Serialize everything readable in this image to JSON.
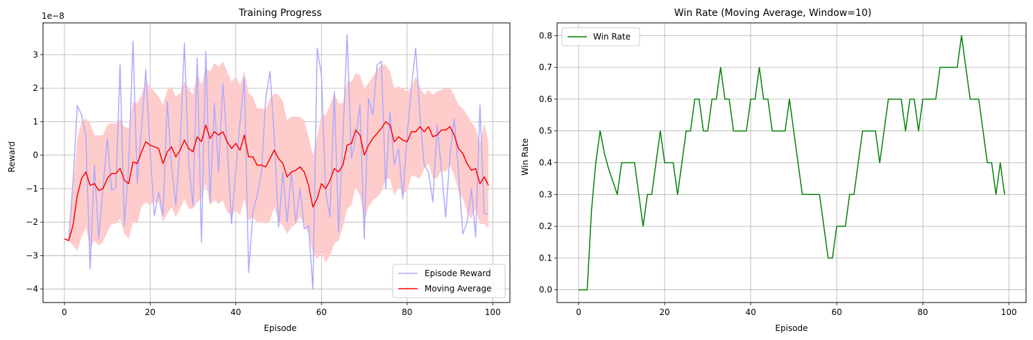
{
  "chart_data": [
    {
      "type": "line",
      "title": "Training Progress",
      "xlabel": "Episode",
      "ylabel": "Reward",
      "offset_label": "1e−8",
      "xlim": [
        -5,
        104
      ],
      "ylim": [
        -4.4,
        3.95
      ],
      "x_ticks": [
        0,
        20,
        40,
        60,
        80,
        100
      ],
      "y_ticks": [
        -4,
        -3,
        -2,
        -1,
        0,
        1,
        2,
        3
      ],
      "grid": true,
      "legend_position": "lower-right",
      "series": [
        {
          "name": "Episode Reward",
          "color": "#aaaaff",
          "x": [
            0,
            1,
            2,
            3,
            4,
            5,
            6,
            7,
            8,
            9,
            10,
            11,
            12,
            13,
            14,
            15,
            16,
            17,
            18,
            19,
            20,
            21,
            22,
            23,
            24,
            25,
            26,
            27,
            28,
            29,
            30,
            31,
            32,
            33,
            34,
            35,
            36,
            37,
            38,
            39,
            40,
            41,
            42,
            43,
            44,
            45,
            46,
            47,
            48,
            49,
            50,
            51,
            52,
            53,
            54,
            55,
            56,
            57,
            58,
            59,
            60,
            61,
            62,
            63,
            64,
            65,
            66,
            67,
            68,
            69,
            70,
            71,
            72,
            73,
            74,
            75,
            76,
            77,
            78,
            79,
            80,
            81,
            82,
            83,
            84,
            85,
            86,
            87,
            88,
            89,
            90,
            91,
            92,
            93,
            94,
            95,
            96,
            97,
            98,
            99
          ],
          "values": [
            -2.5,
            -2.55,
            -0.8,
            1.48,
            1.2,
            0.6,
            -3.4,
            -0.3,
            -2.5,
            -1.0,
            0.5,
            -1.05,
            -0.95,
            2.7,
            -2.1,
            -0.3,
            3.4,
            -0.85,
            0.8,
            2.55,
            0.1,
            -1.8,
            -1.1,
            -1.8,
            1.6,
            -0.3,
            -1.5,
            0.3,
            3.35,
            -0.2,
            -1.5,
            2.9,
            -2.6,
            3.1,
            -1.4,
            1.55,
            -0.5,
            2.15,
            0.3,
            -2.05,
            -0.5,
            1.0,
            2.3,
            -3.5,
            -1.7,
            -1.2,
            -0.5,
            1.7,
            2.5,
            0.5,
            -2.15,
            -0.5,
            -2.0,
            -0.5,
            -2.0,
            -1.0,
            -2.2,
            -2.1,
            -4.0,
            3.2,
            2.4,
            -1.1,
            -1.85,
            1.9,
            -2.3,
            0.5,
            3.6,
            -0.1,
            0.5,
            1.5,
            -2.5,
            1.7,
            1.2,
            2.7,
            2.8,
            -1.0,
            1.3,
            -0.3,
            0.2,
            -1.3,
            0.6,
            2.0,
            3.2,
            1.2,
            -0.3,
            -0.5,
            -1.4,
            0.9,
            -0.4,
            -1.85,
            0.0,
            1.1,
            -0.5,
            -2.35,
            -2.0,
            -1.0,
            -2.45,
            1.5,
            -1.75,
            -1.75
          ]
        },
        {
          "name": "Moving Average",
          "color": "#ff0000",
          "x": [
            0,
            1,
            2,
            3,
            4,
            5,
            6,
            7,
            8,
            9,
            10,
            11,
            12,
            13,
            14,
            15,
            16,
            17,
            18,
            19,
            20,
            21,
            22,
            23,
            24,
            25,
            26,
            27,
            28,
            29,
            30,
            31,
            32,
            33,
            34,
            35,
            36,
            37,
            38,
            39,
            40,
            41,
            42,
            43,
            44,
            45,
            46,
            47,
            48,
            49,
            50,
            51,
            52,
            53,
            54,
            55,
            56,
            57,
            58,
            59,
            60,
            61,
            62,
            63,
            64,
            65,
            66,
            67,
            68,
            69,
            70,
            71,
            72,
            73,
            74,
            75,
            76,
            77,
            78,
            79,
            80,
            81,
            82,
            83,
            84,
            85,
            86,
            87,
            88,
            89,
            90,
            91,
            92,
            93,
            94,
            95,
            96,
            97,
            98,
            99
          ],
          "values": [
            -2.5,
            -2.55,
            -2.1,
            -1.2,
            -0.7,
            -0.5,
            -0.9,
            -0.85,
            -1.05,
            -1.0,
            -0.7,
            -0.55,
            -0.55,
            -0.4,
            -0.75,
            -0.85,
            -0.2,
            -0.25,
            0.1,
            0.4,
            0.3,
            0.25,
            0.2,
            -0.25,
            0.1,
            0.25,
            -0.05,
            0.15,
            0.45,
            0.2,
            0.1,
            0.55,
            0.4,
            0.9,
            0.5,
            0.7,
            0.6,
            0.7,
            0.4,
            0.2,
            0.35,
            0.15,
            0.6,
            -0.05,
            -0.05,
            -0.3,
            -0.3,
            -0.35,
            -0.1,
            0.15,
            -0.1,
            -0.25,
            -0.65,
            -0.5,
            -0.45,
            -0.35,
            -0.5,
            -0.9,
            -1.55,
            -1.3,
            -0.85,
            -1.0,
            -0.75,
            -0.4,
            -0.5,
            -0.3,
            0.3,
            0.35,
            0.75,
            0.6,
            0.0,
            0.3,
            0.5,
            0.65,
            0.8,
            1.0,
            0.9,
            0.4,
            0.55,
            0.45,
            0.4,
            0.7,
            0.7,
            0.85,
            0.7,
            0.85,
            0.55,
            0.6,
            0.75,
            0.75,
            0.85,
            0.6,
            0.2,
            0.05,
            -0.25,
            -0.45,
            -0.4,
            -0.85,
            -0.65,
            -0.9
          ]
        }
      ],
      "band": {
        "color": "#ffcccc",
        "upper": [
          -2.5,
          -2.55,
          -1.0,
          0.5,
          1.0,
          1.1,
          0.95,
          0.6,
          0.6,
          0.6,
          0.9,
          0.95,
          0.95,
          1.1,
          0.85,
          0.8,
          1.6,
          1.55,
          1.8,
          2.2,
          2.05,
          1.9,
          1.75,
          1.5,
          1.95,
          2.05,
          1.75,
          1.85,
          2.2,
          2.0,
          1.8,
          2.45,
          2.1,
          2.6,
          2.5,
          2.75,
          2.65,
          2.8,
          2.5,
          2.2,
          2.35,
          2.1,
          2.5,
          1.85,
          1.75,
          1.4,
          1.4,
          1.35,
          1.7,
          1.85,
          1.8,
          1.6,
          1.05,
          1.15,
          1.15,
          1.15,
          1.05,
          0.55,
          0.0,
          0.55,
          1.2,
          1.2,
          1.5,
          1.85,
          1.55,
          1.55,
          2.2,
          2.2,
          2.45,
          2.4,
          2.0,
          2.15,
          2.35,
          2.55,
          2.7,
          2.7,
          2.5,
          2.0,
          2.05,
          2.0,
          1.9,
          2.0,
          2.35,
          2.05,
          1.8,
          1.95,
          1.8,
          1.9,
          1.95,
          2.0,
          2.0,
          1.8,
          1.5,
          1.4,
          1.2,
          1.0,
          0.8,
          0.35,
          0.95,
          0.4
        ],
        "lower": [
          -2.5,
          -2.55,
          -2.7,
          -2.85,
          -2.45,
          -2.15,
          -2.75,
          -2.55,
          -2.7,
          -2.6,
          -2.3,
          -2.05,
          -2.05,
          -1.9,
          -2.35,
          -2.5,
          -2.0,
          -2.05,
          -1.55,
          -1.4,
          -1.5,
          -1.4,
          -1.4,
          -2.0,
          -1.75,
          -1.55,
          -1.85,
          -1.6,
          -1.3,
          -1.6,
          -1.6,
          -1.4,
          -1.3,
          -0.85,
          -1.5,
          -1.35,
          -1.45,
          -1.35,
          -1.7,
          -1.8,
          -1.65,
          -1.8,
          -1.3,
          -1.95,
          -1.85,
          -2.0,
          -2.0,
          -2.05,
          -1.95,
          -1.55,
          -2.0,
          -2.1,
          -2.35,
          -2.15,
          -2.05,
          -1.85,
          -2.05,
          -2.35,
          -2.9,
          -3.1,
          -2.9,
          -3.2,
          -3.0,
          -2.65,
          -2.55,
          -2.15,
          -1.6,
          -1.5,
          -0.95,
          -1.2,
          -2.0,
          -1.55,
          -1.35,
          -1.25,
          -1.1,
          -0.7,
          -0.7,
          -1.2,
          -0.95,
          -1.1,
          -1.1,
          -0.6,
          -0.65,
          -0.7,
          -0.4,
          -0.25,
          -0.7,
          -0.7,
          -0.45,
          -0.5,
          -0.3,
          -0.6,
          -1.1,
          -1.3,
          -1.7,
          -1.9,
          -1.6,
          -2.05,
          -2.05,
          -2.2
        ]
      }
    },
    {
      "type": "line",
      "title": "Win Rate (Moving Average, Window=10)",
      "xlabel": "Episode",
      "ylabel": "Win Rate",
      "xlim": [
        -5,
        104
      ],
      "ylim": [
        -0.04,
        0.84
      ],
      "x_ticks": [
        0,
        20,
        40,
        60,
        80,
        100
      ],
      "y_ticks": [
        "0.0",
        "0.1",
        "0.2",
        "0.3",
        "0.4",
        "0.5",
        "0.6",
        "0.7",
        "0.8"
      ],
      "grid": true,
      "legend_position": "top-left",
      "series": [
        {
          "name": "Win Rate",
          "color": "#008000",
          "x": [
            0,
            1,
            2,
            3,
            4,
            5,
            6,
            7,
            8,
            9,
            10,
            11,
            12,
            13,
            14,
            15,
            16,
            17,
            18,
            19,
            20,
            21,
            22,
            23,
            24,
            25,
            26,
            27,
            28,
            29,
            30,
            31,
            32,
            33,
            34,
            35,
            36,
            37,
            38,
            39,
            40,
            41,
            42,
            43,
            44,
            45,
            46,
            47,
            48,
            49,
            50,
            51,
            52,
            53,
            54,
            55,
            56,
            57,
            58,
            59,
            60,
            61,
            62,
            63,
            64,
            65,
            66,
            67,
            68,
            69,
            70,
            71,
            72,
            73,
            74,
            75,
            76,
            77,
            78,
            79,
            80,
            81,
            82,
            83,
            84,
            85,
            86,
            87,
            88,
            89,
            90,
            91,
            92,
            93,
            94,
            95,
            96,
            97,
            98,
            99
          ],
          "values": [
            0.0,
            0.0,
            0.0,
            0.25,
            0.4,
            0.5,
            0.43,
            0.38,
            0.34,
            0.3,
            0.4,
            0.4,
            0.4,
            0.4,
            0.3,
            0.2,
            0.3,
            0.3,
            0.4,
            0.5,
            0.4,
            0.4,
            0.4,
            0.3,
            0.4,
            0.5,
            0.5,
            0.6,
            0.6,
            0.5,
            0.5,
            0.6,
            0.6,
            0.7,
            0.6,
            0.6,
            0.5,
            0.5,
            0.5,
            0.5,
            0.6,
            0.6,
            0.7,
            0.6,
            0.6,
            0.5,
            0.5,
            0.5,
            0.5,
            0.6,
            0.5,
            0.4,
            0.3,
            0.3,
            0.3,
            0.3,
            0.3,
            0.2,
            0.1,
            0.1,
            0.2,
            0.2,
            0.2,
            0.3,
            0.3,
            0.4,
            0.5,
            0.5,
            0.5,
            0.5,
            0.4,
            0.5,
            0.6,
            0.6,
            0.6,
            0.6,
            0.5,
            0.6,
            0.6,
            0.5,
            0.6,
            0.6,
            0.6,
            0.6,
            0.7,
            0.7,
            0.7,
            0.7,
            0.7,
            0.8,
            0.7,
            0.6,
            0.6,
            0.6,
            0.5,
            0.4,
            0.4,
            0.3,
            0.4,
            0.3
          ]
        }
      ]
    }
  ]
}
